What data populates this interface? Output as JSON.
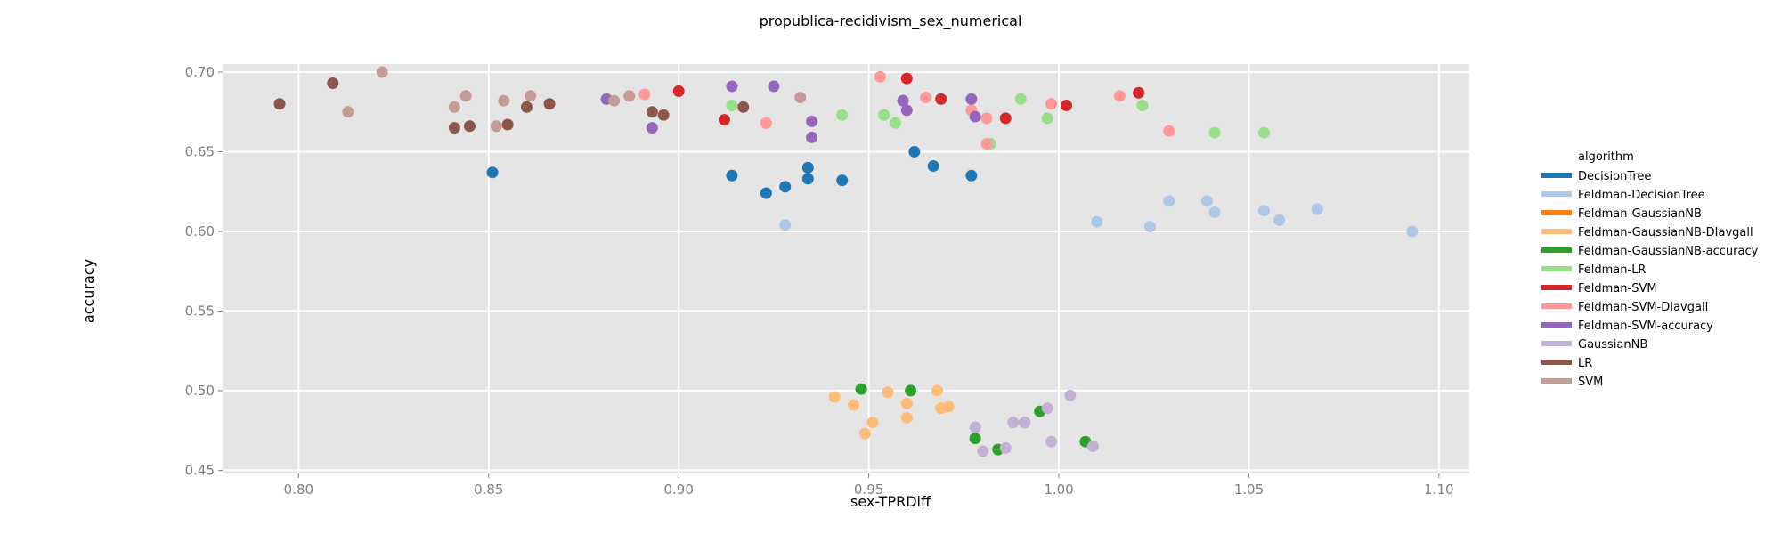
{
  "chart_data": {
    "type": "scatter",
    "title": "propublica-recidivism_sex_numerical",
    "xlabel": "sex-TPRDiff",
    "ylabel": "accuracy",
    "xlim": [
      0.78,
      1.108
    ],
    "ylim": [
      0.448,
      0.705
    ],
    "xticks": [
      "0.80",
      "0.85",
      "0.90",
      "0.95",
      "1.00",
      "1.05",
      "1.10"
    ],
    "yticks": [
      "0.45",
      "0.50",
      "0.55",
      "0.60",
      "0.65",
      "0.70"
    ],
    "grid": true,
    "legend": {
      "title": "algorithm",
      "placement": "right"
    },
    "series": [
      {
        "name": "DecisionTree",
        "color": "#1f77b4",
        "points": [
          [
            0.851,
            0.637
          ],
          [
            0.914,
            0.635
          ],
          [
            0.923,
            0.624
          ],
          [
            0.928,
            0.628
          ],
          [
            0.934,
            0.64
          ],
          [
            0.934,
            0.633
          ],
          [
            0.943,
            0.632
          ],
          [
            0.962,
            0.65
          ],
          [
            0.967,
            0.641
          ],
          [
            0.977,
            0.635
          ]
        ]
      },
      {
        "name": "Feldman-DecisionTree",
        "color": "#aec7e8",
        "points": [
          [
            0.928,
            0.604
          ],
          [
            1.01,
            0.606
          ],
          [
            1.024,
            0.603
          ],
          [
            1.029,
            0.619
          ],
          [
            1.039,
            0.619
          ],
          [
            1.041,
            0.612
          ],
          [
            1.054,
            0.613
          ],
          [
            1.058,
            0.607
          ],
          [
            1.068,
            0.614
          ],
          [
            1.093,
            0.6
          ]
        ]
      },
      {
        "name": "Feldman-GaussianNB",
        "color": "#ff7f0e",
        "points": []
      },
      {
        "name": "Feldman-GaussianNB-DIavgall",
        "color": "#ffbb78",
        "points": [
          [
            0.941,
            0.496
          ],
          [
            0.946,
            0.491
          ],
          [
            0.949,
            0.473
          ],
          [
            0.951,
            0.48
          ],
          [
            0.955,
            0.499
          ],
          [
            0.96,
            0.492
          ],
          [
            0.96,
            0.483
          ],
          [
            0.968,
            0.5
          ],
          [
            0.969,
            0.489
          ],
          [
            0.971,
            0.49
          ]
        ]
      },
      {
        "name": "Feldman-GaussianNB-accuracy",
        "color": "#2ca02c",
        "points": [
          [
            0.948,
            0.501
          ],
          [
            0.961,
            0.5
          ],
          [
            0.978,
            0.47
          ],
          [
            0.984,
            0.463
          ],
          [
            0.991,
            0.48
          ],
          [
            0.995,
            0.487
          ],
          [
            1.007,
            0.468
          ]
        ]
      },
      {
        "name": "Feldman-LR",
        "color": "#98df8a",
        "points": [
          [
            0.914,
            0.679
          ],
          [
            0.943,
            0.673
          ],
          [
            0.954,
            0.673
          ],
          [
            0.957,
            0.668
          ],
          [
            0.982,
            0.655
          ],
          [
            0.99,
            0.683
          ],
          [
            0.997,
            0.671
          ],
          [
            1.022,
            0.679
          ],
          [
            1.041,
            0.662
          ],
          [
            1.054,
            0.662
          ]
        ]
      },
      {
        "name": "Feldman-SVM",
        "color": "#d62728",
        "points": [
          [
            0.9,
            0.688
          ],
          [
            0.912,
            0.67
          ],
          [
            0.96,
            0.696
          ],
          [
            0.969,
            0.683
          ],
          [
            0.986,
            0.671
          ],
          [
            1.002,
            0.679
          ],
          [
            1.021,
            0.687
          ]
        ]
      },
      {
        "name": "Feldman-SVM-DIavgall",
        "color": "#ff9896",
        "points": [
          [
            0.891,
            0.686
          ],
          [
            0.923,
            0.668
          ],
          [
            0.953,
            0.697
          ],
          [
            0.965,
            0.684
          ],
          [
            0.977,
            0.676
          ],
          [
            0.981,
            0.655
          ],
          [
            0.981,
            0.671
          ],
          [
            0.998,
            0.68
          ],
          [
            1.016,
            0.685
          ],
          [
            1.029,
            0.663
          ]
        ]
      },
      {
        "name": "Feldman-SVM-accuracy",
        "color": "#9467bd",
        "points": [
          [
            0.881,
            0.683
          ],
          [
            0.893,
            0.665
          ],
          [
            0.914,
            0.691
          ],
          [
            0.925,
            0.691
          ],
          [
            0.935,
            0.669
          ],
          [
            0.935,
            0.659
          ],
          [
            0.959,
            0.682
          ],
          [
            0.96,
            0.676
          ],
          [
            0.977,
            0.683
          ],
          [
            0.978,
            0.672
          ]
        ]
      },
      {
        "name": "GaussianNB",
        "color": "#c5b0d5",
        "points": [
          [
            0.978,
            0.477
          ],
          [
            0.98,
            0.462
          ],
          [
            0.986,
            0.464
          ],
          [
            0.988,
            0.48
          ],
          [
            0.991,
            0.48
          ],
          [
            0.997,
            0.489
          ],
          [
            0.998,
            0.468
          ],
          [
            1.003,
            0.497
          ],
          [
            1.009,
            0.465
          ]
        ]
      },
      {
        "name": "LR",
        "color": "#8c564b",
        "points": [
          [
            0.795,
            0.68
          ],
          [
            0.809,
            0.693
          ],
          [
            0.841,
            0.665
          ],
          [
            0.845,
            0.666
          ],
          [
            0.855,
            0.667
          ],
          [
            0.86,
            0.678
          ],
          [
            0.866,
            0.68
          ],
          [
            0.893,
            0.675
          ],
          [
            0.896,
            0.673
          ],
          [
            0.917,
            0.678
          ]
        ]
      },
      {
        "name": "SVM",
        "color": "#c49c94",
        "points": [
          [
            0.813,
            0.675
          ],
          [
            0.822,
            0.7
          ],
          [
            0.841,
            0.678
          ],
          [
            0.844,
            0.685
          ],
          [
            0.852,
            0.666
          ],
          [
            0.854,
            0.682
          ],
          [
            0.861,
            0.685
          ],
          [
            0.883,
            0.682
          ],
          [
            0.887,
            0.685
          ],
          [
            0.932,
            0.684
          ]
        ]
      }
    ]
  }
}
